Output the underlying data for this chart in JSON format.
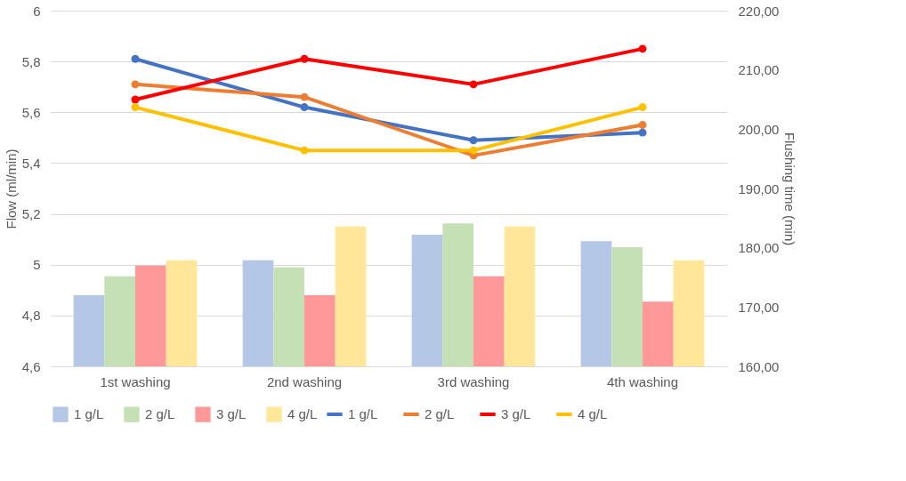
{
  "chart_data": {
    "type": "bar",
    "ylabel": "Flow (ml/min)",
    "y2label": "Flushing time (min)",
    "categories": [
      "1st washing",
      "2nd washing",
      "3rd washing",
      "4th washing"
    ],
    "series": [
      {
        "name": "1 g/L",
        "axis": "y2",
        "color": "#b4c7e7",
        "values": [
          172.0,
          177.9,
          182.2,
          181.1
        ]
      },
      {
        "name": "2 g/L",
        "axis": "y2",
        "color": "#c5e0b4",
        "values": [
          175.2,
          176.7,
          184.1,
          180.1
        ]
      },
      {
        "name": "3 g/L",
        "axis": "y2",
        "color": "#ff9999",
        "values": [
          177.0,
          172.0,
          175.2,
          170.9
        ]
      },
      {
        "name": "4 g/L",
        "axis": "y2",
        "color": "#ffe699",
        "values": [
          177.9,
          183.6,
          183.6,
          177.9
        ]
      },
      {
        "name": "1 g/L",
        "type": "line",
        "axis": "y",
        "color": "#4472c4",
        "values": [
          5.81,
          5.62,
          5.49,
          5.52
        ]
      },
      {
        "name": "2 g/L",
        "type": "line",
        "axis": "y",
        "color": "#ed7d31",
        "values": [
          5.71,
          5.66,
          5.43,
          5.55
        ]
      },
      {
        "name": "3 g/L",
        "type": "line",
        "axis": "y",
        "color": "#ff0000",
        "values": [
          5.65,
          5.81,
          5.71,
          5.85
        ]
      },
      {
        "name": "4 g/L",
        "type": "line",
        "axis": "y",
        "color": "#ffc000",
        "values": [
          5.62,
          5.45,
          5.45,
          5.62
        ]
      }
    ],
    "ylim": [
      4.6,
      6
    ],
    "yticks": [
      {
        "value": 4.6,
        "label": "4,6"
      },
      {
        "value": 4.8,
        "label": "4,8"
      },
      5,
      {
        "value": 5.2,
        "label": "5,2"
      },
      {
        "value": 5.4,
        "label": "5,4"
      },
      {
        "value": 5.6,
        "label": "5,6"
      },
      {
        "value": 5.8,
        "label": "5,8"
      },
      6
    ],
    "y2lim": [
      160,
      220
    ],
    "y2ticks": [
      {
        "value": 160,
        "label": "160,00"
      },
      {
        "value": 170,
        "label": "170,00"
      },
      {
        "value": 180,
        "label": "180,00"
      },
      {
        "value": 190,
        "label": "190,00"
      },
      {
        "value": 200,
        "label": "200,00"
      },
      {
        "value": 210,
        "label": "210,00"
      },
      {
        "value": 220,
        "label": "220,00"
      }
    ],
    "grid": "y",
    "legend": "bottom",
    "marker": "circle",
    "line_style": "solid"
  }
}
